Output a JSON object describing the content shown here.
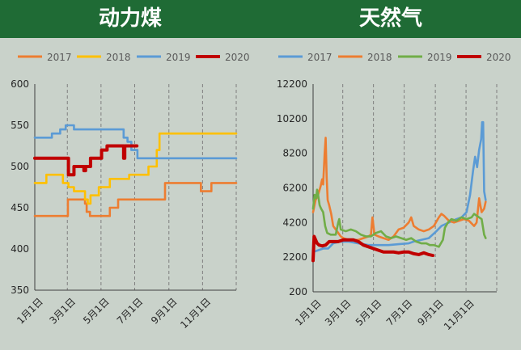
{
  "header": {
    "left_title": "动力煤",
    "right_title": "天然气"
  },
  "colors": {
    "2017": "#ed7d31",
    "2018": "#ffc000",
    "2019_coal": "#5b9bd5",
    "2019_gas": "#70ad47",
    "2020": "#c00000"
  },
  "chart_data": [
    {
      "type": "line",
      "title": "动力煤",
      "x_ticks": [
        "1月1日",
        "3月1日",
        "5月1日",
        "7月1日",
        "9月1日",
        "11月1日"
      ],
      "y_ticks": [
        350,
        400,
        450,
        500,
        550,
        600
      ],
      "ylim": [
        350,
        600
      ],
      "x_range_days": [
        0,
        365
      ],
      "grid": "vertical-dashed",
      "legend_position": "top",
      "series": [
        {
          "name": "2017",
          "color": "#ed7d31",
          "step": true,
          "points": [
            [
              0,
              440
            ],
            [
              59,
              440
            ],
            [
              60,
              460
            ],
            [
              90,
              460
            ],
            [
              91,
              455
            ],
            [
              94,
              445
            ],
            [
              100,
              440
            ],
            [
              135,
              440
            ],
            [
              136,
              450
            ],
            [
              150,
              450
            ],
            [
              151,
              460
            ],
            [
              235,
              460
            ],
            [
              236,
              480
            ],
            [
              300,
              480
            ],
            [
              301,
              470
            ],
            [
              315,
              470
            ],
            [
              320,
              480
            ],
            [
              365,
              480
            ]
          ]
        },
        {
          "name": "2018",
          "color": "#ffc000",
          "step": true,
          "points": [
            [
              0,
              480
            ],
            [
              20,
              480
            ],
            [
              21,
              490
            ],
            [
              50,
              490
            ],
            [
              51,
              480
            ],
            [
              60,
              480
            ],
            [
              61,
              475
            ],
            [
              70,
              475
            ],
            [
              71,
              470
            ],
            [
              90,
              470
            ],
            [
              91,
              460
            ],
            [
              96,
              455
            ],
            [
              100,
              455
            ],
            [
              101,
              465
            ],
            [
              115,
              465
            ],
            [
              116,
              475
            ],
            [
              135,
              475
            ],
            [
              136,
              485
            ],
            [
              170,
              485
            ],
            [
              171,
              490
            ],
            [
              205,
              490
            ],
            [
              206,
              500
            ],
            [
              220,
              500
            ],
            [
              221,
              520
            ],
            [
              226,
              540
            ],
            [
              365,
              540
            ]
          ]
        },
        {
          "name": "2019",
          "color": "#5b9bd5",
          "step": true,
          "points": [
            [
              0,
              535
            ],
            [
              30,
              535
            ],
            [
              31,
              540
            ],
            [
              45,
              540
            ],
            [
              46,
              545
            ],
            [
              55,
              545
            ],
            [
              56,
              550
            ],
            [
              70,
              550
            ],
            [
              71,
              545
            ],
            [
              160,
              545
            ],
            [
              161,
              535
            ],
            [
              168,
              530
            ],
            [
              175,
              520
            ],
            [
              185,
              520
            ],
            [
              186,
              510
            ],
            [
              365,
              510
            ]
          ]
        },
        {
          "name": "2020",
          "color": "#c00000",
          "step": true,
          "points": [
            [
              0,
              510
            ],
            [
              60,
              510
            ],
            [
              61,
              490
            ],
            [
              70,
              490
            ],
            [
              71,
              500
            ],
            [
              88,
              500
            ],
            [
              89,
              495
            ],
            [
              92,
              500
            ],
            [
              100,
              500
            ],
            [
              101,
              510
            ],
            [
              120,
              510
            ],
            [
              121,
              520
            ],
            [
              130,
              520
            ],
            [
              131,
              525
            ],
            [
              160,
              525
            ],
            [
              161,
              510
            ],
            [
              163,
              525
            ],
            [
              185,
              525
            ]
          ]
        }
      ]
    },
    {
      "type": "line",
      "title": "天然气",
      "x_ticks": [
        "1月1日",
        "3月1日",
        "5月1日",
        "7月1日",
        "9月1日",
        "11月1日"
      ],
      "y_ticks": [
        200,
        2200,
        4200,
        6200,
        8200,
        10200,
        12200
      ],
      "ylim": [
        200,
        12200
      ],
      "x_range_days": [
        0,
        365
      ],
      "grid": "vertical-dashed",
      "legend_position": "top",
      "series": [
        {
          "name": "2017",
          "color": "#5b9bd5",
          "points": [
            [
              0,
              2500
            ],
            [
              10,
              2600
            ],
            [
              20,
              2700
            ],
            [
              30,
              2700
            ],
            [
              40,
              3000
            ],
            [
              55,
              3100
            ],
            [
              70,
              3100
            ],
            [
              90,
              3000
            ],
            [
              110,
              2900
            ],
            [
              130,
              2900
            ],
            [
              150,
              2900
            ],
            [
              170,
              2950
            ],
            [
              190,
              3000
            ],
            [
              200,
              3100
            ],
            [
              215,
              3200
            ],
            [
              230,
              3300
            ],
            [
              245,
              3700
            ],
            [
              255,
              4000
            ],
            [
              270,
              4200
            ],
            [
              285,
              4400
            ],
            [
              295,
              4500
            ],
            [
              305,
              4800
            ],
            [
              312,
              5800
            ],
            [
              318,
              7200
            ],
            [
              322,
              8000
            ],
            [
              326,
              7400
            ],
            [
              330,
              8400
            ],
            [
              334,
              9000
            ],
            [
              336,
              10000
            ],
            [
              338,
              10000
            ],
            [
              340,
              6000
            ],
            [
              343,
              5500
            ]
          ]
        },
        {
          "name": "2018",
          "color": "#ed7d31",
          "points": [
            [
              0,
              4800
            ],
            [
              5,
              5500
            ],
            [
              10,
              5800
            ],
            [
              15,
              6300
            ],
            [
              18,
              6700
            ],
            [
              20,
              6400
            ],
            [
              23,
              8200
            ],
            [
              25,
              9100
            ],
            [
              27,
              6800
            ],
            [
              29,
              5500
            ],
            [
              32,
              5200
            ],
            [
              36,
              4700
            ],
            [
              40,
              4000
            ],
            [
              45,
              3800
            ],
            [
              50,
              3600
            ],
            [
              55,
              3400
            ],
            [
              60,
              3300
            ],
            [
              70,
              3200
            ],
            [
              80,
              3200
            ],
            [
              90,
              3200
            ],
            [
              100,
              3300
            ],
            [
              110,
              3400
            ],
            [
              115,
              3500
            ],
            [
              118,
              4500
            ],
            [
              122,
              3500
            ],
            [
              130,
              3400
            ],
            [
              140,
              3300
            ],
            [
              150,
              3200
            ],
            [
              160,
              3400
            ],
            [
              170,
              3800
            ],
            [
              180,
              3900
            ],
            [
              190,
              4200
            ],
            [
              195,
              4500
            ],
            [
              200,
              4000
            ],
            [
              210,
              3800
            ],
            [
              220,
              3700
            ],
            [
              230,
              3800
            ],
            [
              240,
              4000
            ],
            [
              250,
              4500
            ],
            [
              255,
              4700
            ],
            [
              260,
              4600
            ],
            [
              270,
              4300
            ],
            [
              280,
              4200
            ],
            [
              290,
              4300
            ],
            [
              300,
              4400
            ],
            [
              310,
              4300
            ],
            [
              320,
              4000
            ],
            [
              325,
              4200
            ],
            [
              330,
              5600
            ],
            [
              335,
              4800
            ],
            [
              340,
              5000
            ],
            [
              343,
              5400
            ]
          ]
        },
        {
          "name": "2019",
          "color": "#70ad47",
          "points": [
            [
              0,
              5000
            ],
            [
              3,
              5800
            ],
            [
              6,
              5600
            ],
            [
              8,
              6100
            ],
            [
              10,
              5800
            ],
            [
              13,
              5200
            ],
            [
              16,
              5000
            ],
            [
              20,
              4800
            ],
            [
              24,
              4000
            ],
            [
              28,
              3600
            ],
            [
              35,
              3500
            ],
            [
              45,
              3500
            ],
            [
              50,
              4200
            ],
            [
              52,
              4400
            ],
            [
              55,
              3800
            ],
            [
              65,
              3700
            ],
            [
              75,
              3800
            ],
            [
              85,
              3700
            ],
            [
              95,
              3500
            ],
            [
              105,
              3400
            ],
            [
              115,
              3400
            ],
            [
              125,
              3600
            ],
            [
              135,
              3700
            ],
            [
              145,
              3400
            ],
            [
              155,
              3300
            ],
            [
              165,
              3400
            ],
            [
              175,
              3300
            ],
            [
              185,
              3200
            ],
            [
              195,
              3300
            ],
            [
              205,
              3100
            ],
            [
              215,
              3000
            ],
            [
              225,
              3000
            ],
            [
              232,
              2900
            ],
            [
              240,
              2900
            ],
            [
              250,
              2800
            ],
            [
              258,
              3200
            ],
            [
              262,
              3900
            ],
            [
              268,
              4200
            ],
            [
              275,
              4400
            ],
            [
              285,
              4300
            ],
            [
              295,
              4500
            ],
            [
              305,
              4400
            ],
            [
              315,
              4500
            ],
            [
              320,
              4700
            ],
            [
              325,
              4600
            ],
            [
              330,
              4500
            ],
            [
              335,
              4400
            ],
            [
              340,
              3500
            ],
            [
              343,
              3300
            ]
          ]
        },
        {
          "name": "2020",
          "color": "#c00000",
          "points": [
            [
              0,
              2000
            ],
            [
              2,
              3400
            ],
            [
              5,
              3200
            ],
            [
              8,
              3000
            ],
            [
              12,
              2900
            ],
            [
              18,
              2850
            ],
            [
              25,
              2900
            ],
            [
              32,
              3100
            ],
            [
              40,
              3100
            ],
            [
              50,
              3100
            ],
            [
              60,
              3200
            ],
            [
              70,
              3200
            ],
            [
              80,
              3200
            ],
            [
              90,
              3100
            ],
            [
              100,
              2900
            ],
            [
              110,
              2800
            ],
            [
              120,
              2700
            ],
            [
              130,
              2600
            ],
            [
              140,
              2500
            ],
            [
              150,
              2500
            ],
            [
              160,
              2500
            ],
            [
              170,
              2450
            ],
            [
              180,
              2500
            ],
            [
              190,
              2500
            ],
            [
              200,
              2400
            ],
            [
              210,
              2350
            ],
            [
              220,
              2450
            ],
            [
              230,
              2350
            ],
            [
              238,
              2300
            ]
          ]
        }
      ]
    }
  ]
}
